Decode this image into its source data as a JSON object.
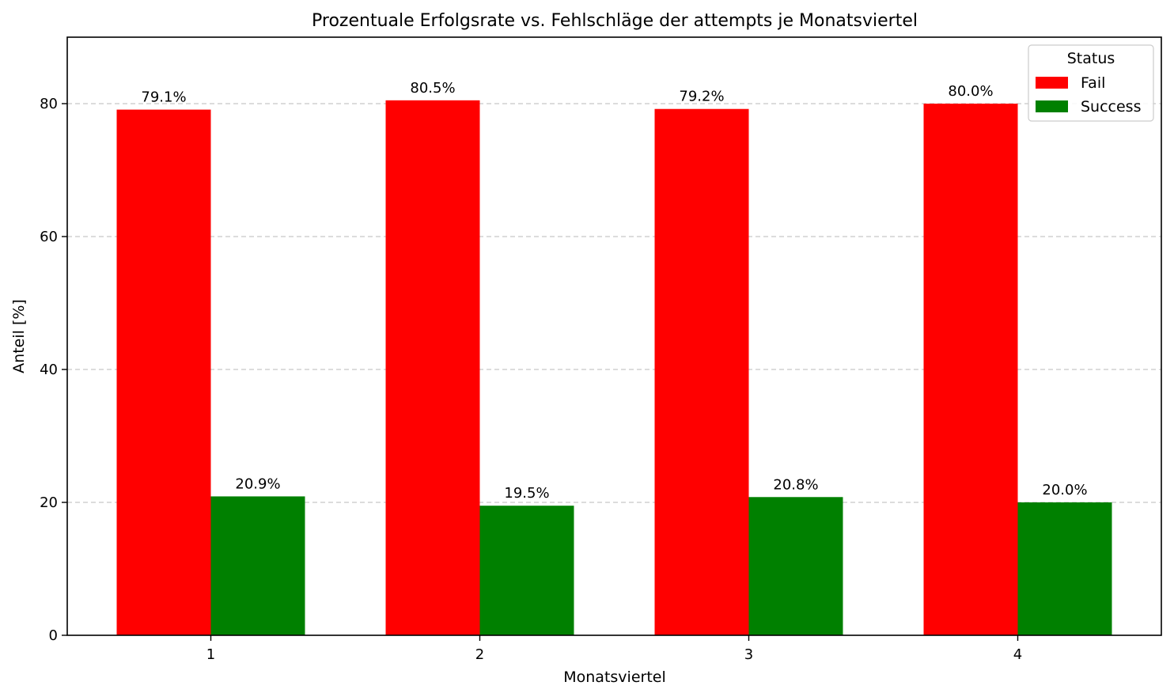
{
  "chart_data": {
    "type": "bar",
    "title": "Prozentuale Erfolgsrate vs. Fehlschläge der attempts je Monatsviertel",
    "xlabel": "Monatsviertel",
    "ylabel": "Anteil [%]",
    "categories": [
      "1",
      "2",
      "3",
      "4"
    ],
    "ylim": [
      0,
      90
    ],
    "yticks": [
      0,
      20,
      40,
      60,
      80
    ],
    "grid": "y-dashed",
    "legend": {
      "title": "Status",
      "placement": "top-right"
    },
    "series": [
      {
        "name": "Fail",
        "color": "#ff0000",
        "values": [
          79.1,
          80.5,
          79.2,
          80.0
        ],
        "labels": [
          "79.1%",
          "80.5%",
          "79.2%",
          "80.0%"
        ]
      },
      {
        "name": "Success",
        "color": "#008000",
        "values": [
          20.9,
          19.5,
          20.8,
          20.0
        ],
        "labels": [
          "20.9%",
          "19.5%",
          "20.8%",
          "20.0%"
        ]
      }
    ]
  }
}
